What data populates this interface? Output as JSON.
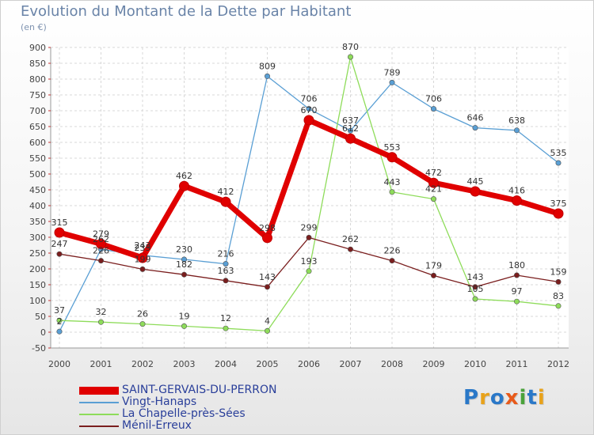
{
  "header": {
    "title": "Evolution du Montant de la Dette par Habitant",
    "subtitle": "(en €)"
  },
  "logo": {
    "letters": [
      "P",
      "r",
      "o",
      "x",
      "i",
      "t",
      "i"
    ],
    "colors": [
      "#2a78c8",
      "#e8a21a",
      "#2a78c8",
      "#e85a1a",
      "#4aa23a",
      "#2a78c8",
      "#e8a21a"
    ]
  },
  "chart_data": {
    "type": "line",
    "title": "Evolution du Montant de la Dette par Habitant",
    "subtitle": "(en €)",
    "xlabel": "",
    "ylabel": "",
    "x": [
      "2000",
      "2001",
      "2002",
      "2003",
      "2004",
      "2005",
      "2006",
      "2007",
      "2008",
      "2009",
      "2010",
      "2011",
      "2012"
    ],
    "ylim": [
      -50,
      900
    ],
    "yticks": [
      -50,
      0,
      50,
      100,
      150,
      200,
      250,
      300,
      350,
      400,
      450,
      500,
      550,
      600,
      650,
      700,
      750,
      800,
      850,
      900
    ],
    "grid": true,
    "legend_position": "bottom-left",
    "series": [
      {
        "name": "SAINT-GERVAIS-DU-PERRON",
        "color": "#e00000",
        "values": [
          315,
          279,
          235,
          462,
          412,
          298,
          670,
          612,
          553,
          472,
          445,
          416,
          375
        ],
        "labels": [
          "315",
          "279",
          "235",
          "462",
          "412",
          "298",
          "670",
          "612",
          "553",
          "472",
          "445",
          "416",
          "375"
        ]
      },
      {
        "name": "Vingt-Hanaps",
        "color": "#5a9fd4",
        "values": [
          2,
          262,
          243,
          230,
          216,
          809,
          706,
          637,
          789,
          706,
          646,
          638,
          535
        ],
        "labels": [
          "2",
          "262",
          "243",
          "230",
          "216",
          "809",
          "706",
          "637",
          "789",
          "706",
          "646",
          "638",
          "535"
        ]
      },
      {
        "name": "La Chapelle-près-Sées",
        "color": "#8edc5a",
        "values": [
          37,
          32,
          26,
          19,
          12,
          4,
          193,
          870,
          443,
          421,
          105,
          97,
          83
        ],
        "labels": [
          "37",
          "32",
          "26",
          "19",
          "12",
          "4",
          "193",
          "870",
          "443",
          "421",
          "105",
          "97",
          "83"
        ]
      },
      {
        "name": "Ménil-Erreux",
        "color": "#7a1e1e",
        "values": [
          247,
          226,
          199,
          182,
          163,
          143,
          299,
          262,
          226,
          179,
          143,
          180,
          159
        ],
        "labels": [
          "247",
          "226",
          "199",
          "182",
          "163",
          "143",
          "299",
          "262",
          "226",
          "179",
          "143",
          "180",
          "159"
        ]
      }
    ]
  }
}
